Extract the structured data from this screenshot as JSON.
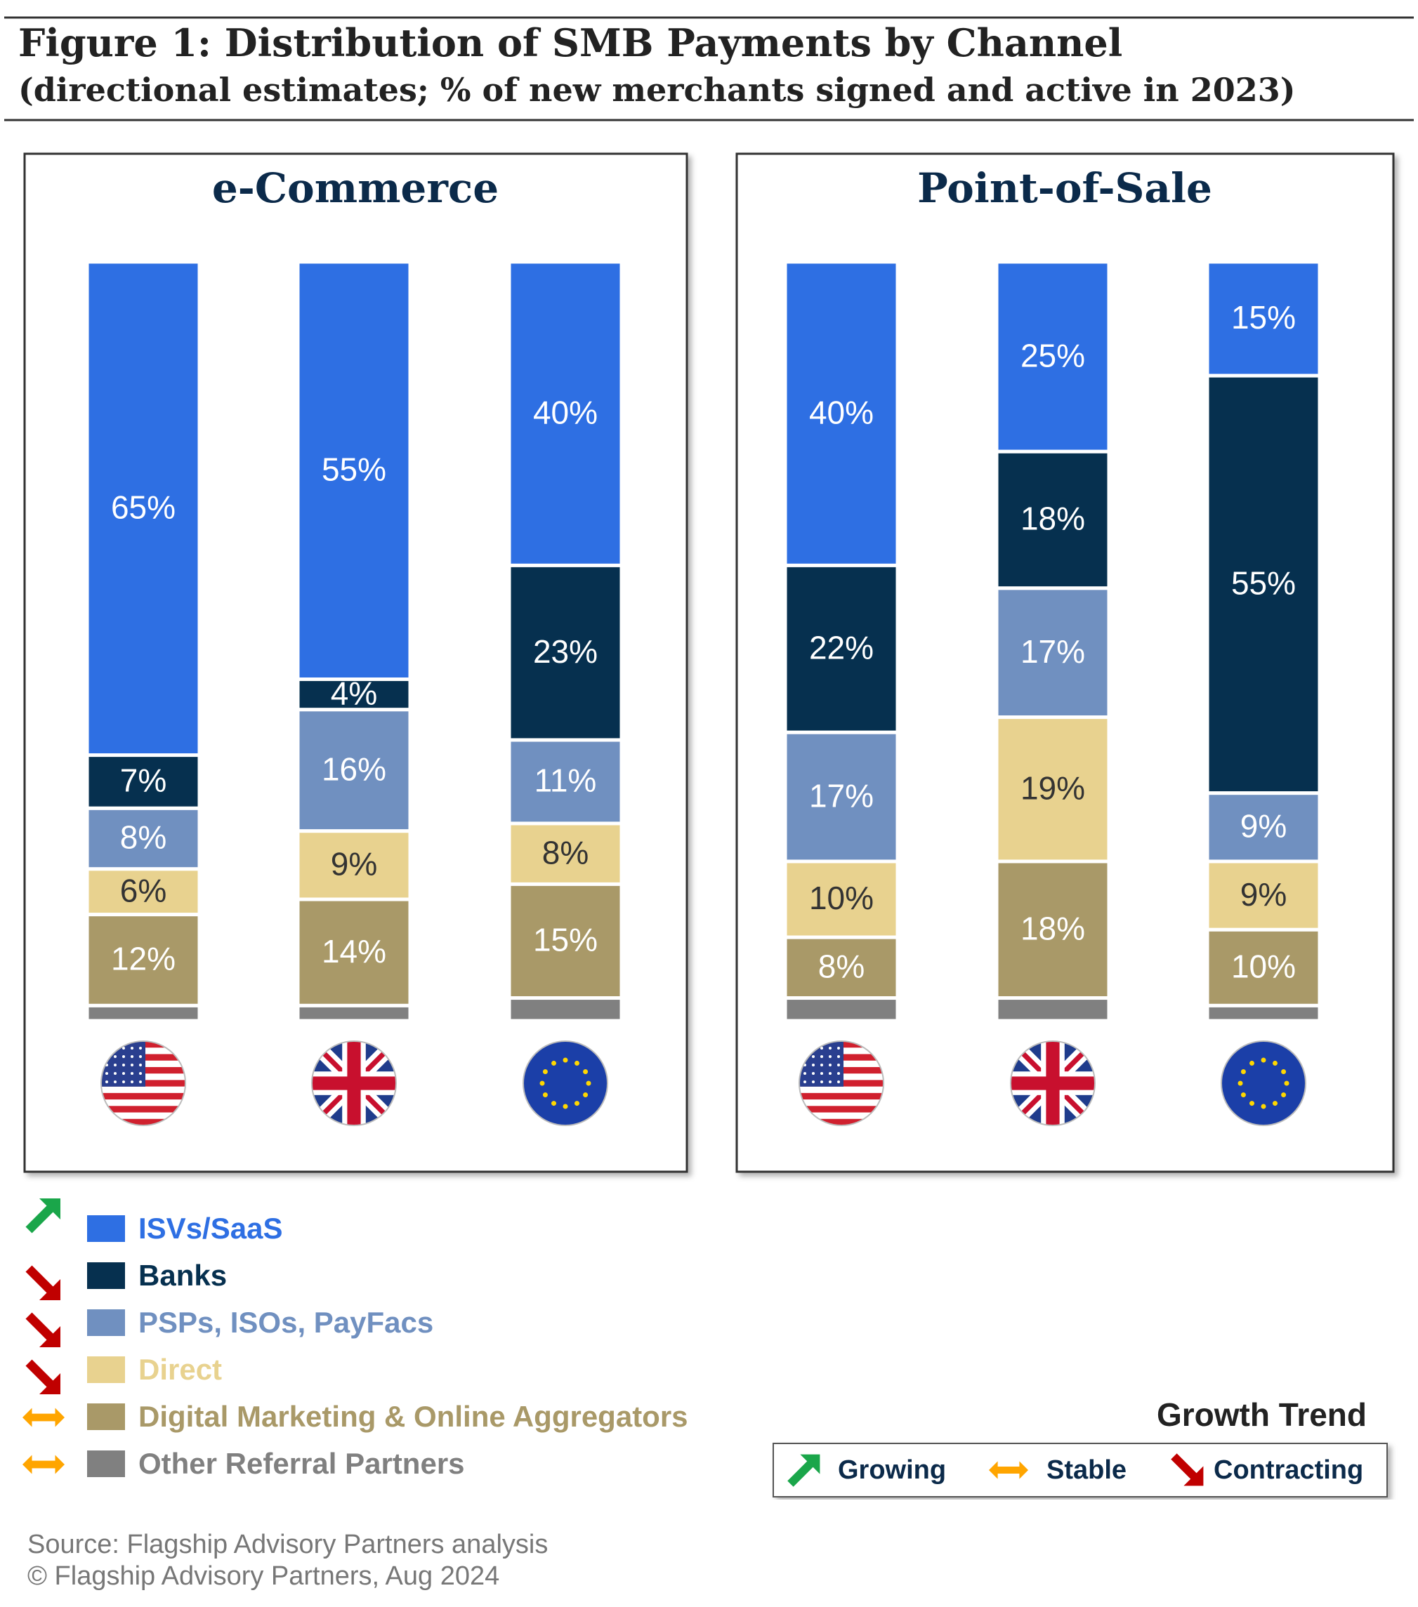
{
  "title": "Figure 1: Distribution of SMB Payments by Channel",
  "subtitle": "(directional estimates; % of new merchants signed and active in 2023)",
  "chart_data": [
    {
      "type": "bar",
      "stacked": true,
      "title": "e-Commerce",
      "categories": [
        null,
        null,
        null
      ],
      "ylim": [
        0,
        100
      ],
      "series": [
        {
          "name": "ISVs/SaaS",
          "color": "#2e6fe3",
          "trend": "up",
          "values": [
            65,
            55,
            40
          ],
          "value_labels": [
            "65%",
            "55%",
            "40%"
          ]
        },
        {
          "name": "Banks",
          "color": "#06304f",
          "trend": "down",
          "values": [
            7,
            4,
            23
          ],
          "value_labels": [
            "7%",
            "4%",
            "23%"
          ]
        },
        {
          "name": "PSPs, ISOs, PayFacs",
          "color": "#7090c0",
          "trend": "down",
          "values": [
            8,
            16,
            11
          ],
          "value_labels": [
            "8%",
            "16%",
            "11%"
          ]
        },
        {
          "name": "Direct",
          "color": "#e8d28f",
          "trend": "down",
          "values": [
            6,
            9,
            8
          ],
          "value_labels": [
            "6%",
            "9%",
            "8%"
          ]
        },
        {
          "name": "Digital Marketing & Online Aggregators",
          "color": "#a99968",
          "trend": "flat",
          "values": [
            12,
            14,
            15
          ],
          "value_labels": [
            "12%",
            "14%",
            "15%"
          ]
        },
        {
          "name": "Other Referral Partners",
          "color": "#808080",
          "trend": "flat",
          "values": [
            2,
            2,
            3
          ]
        }
      ]
    },
    {
      "type": "bar",
      "stacked": true,
      "title": "Point-of-Sale",
      "categories": [
        null,
        null,
        null
      ],
      "ylim": [
        0,
        100
      ],
      "series": [
        {
          "color": "#2e6fe3",
          "values": [
            40,
            25,
            15
          ],
          "value_labels": [
            "40%",
            "25%",
            "15%"
          ]
        },
        {
          "color": "#06304f",
          "values": [
            22,
            18,
            55
          ],
          "value_labels": [
            "22%",
            "18%",
            "55%"
          ]
        },
        {
          "color": "#7090c0",
          "values": [
            17,
            17,
            9
          ],
          "value_labels": [
            "17%",
            "17%",
            "9%"
          ]
        },
        {
          "color": "#e8d28f",
          "values": [
            10,
            19,
            9
          ],
          "value_labels": [
            "10%",
            "19%",
            "9%"
          ]
        },
        {
          "color": "#a99968",
          "values": [
            8,
            18,
            10
          ],
          "value_labels": [
            "8%",
            "18%",
            "10%"
          ]
        },
        {
          "color": "#808080",
          "values": [
            3,
            3,
            2
          ]
        }
      ]
    }
  ],
  "trend_legend": {
    "title": "Growth Trend",
    "items": [
      {
        "direction": "up",
        "label": "Growing"
      },
      {
        "direction": "flat",
        "label": "Stable"
      },
      {
        "direction": "down",
        "label": "Contracting"
      }
    ]
  },
  "source": "Source: Flagship Advisory Partners analysis",
  "copyright": "© Flagship Advisory Partners, Aug 2024"
}
